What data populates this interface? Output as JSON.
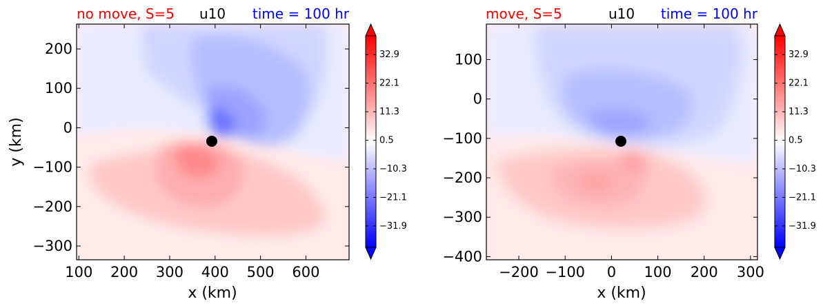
{
  "chart_data": [
    {
      "type": "heatmap",
      "plot_style": "filled-contour",
      "variable": "u10",
      "title_left": "no move, S=5",
      "title_center": "u10",
      "title_right": "time = 100 hr",
      "title_colors": {
        "left": "#ff0000",
        "center": "#000000",
        "right": "#0000ff"
      },
      "xlabel": "x (km)",
      "ylabel": "y (km)",
      "xlim": [
        95,
        695
      ],
      "ylim": [
        -335,
        263
      ],
      "xticks": [
        100,
        200,
        300,
        400,
        500,
        600
      ],
      "yticks": [
        -300,
        -200,
        -100,
        0,
        100,
        200
      ],
      "x_tick_labels": [
        "100",
        "200",
        "300",
        "400",
        "500",
        "600"
      ],
      "y_tick_labels": [
        "−300",
        "−200",
        "−100",
        "0",
        "100",
        "200"
      ],
      "center_marker": {
        "x": 395,
        "y": -37
      },
      "field_features": [
        {
          "kind": "min",
          "x": 405,
          "y": 0,
          "value": -22
        },
        {
          "kind": "max",
          "x": 378,
          "y": -72,
          "value": 26
        }
      ],
      "colorbar": {
        "colormap": "bwr",
        "range": [
          -40,
          40
        ],
        "extend": "both",
        "tick_values": [
          32.9,
          22.1,
          11.3,
          0.5,
          -10.3,
          -21.1,
          -31.9
        ],
        "tick_labels": [
          "32.9",
          "22.1",
          "11.3",
          "0.5",
          "−10.3",
          "−21.1",
          "−31.9"
        ]
      }
    },
    {
      "type": "heatmap",
      "plot_style": "filled-contour",
      "variable": "u10",
      "title_left": "move, S=5",
      "title_center": "u10",
      "title_right": "time = 100 hr",
      "title_colors": {
        "left": "#ff0000",
        "center": "#000000",
        "right": "#0000ff"
      },
      "xlabel": "x (km)",
      "ylabel": "",
      "xlim": [
        -270,
        315
      ],
      "ylim": [
        -408,
        190
      ],
      "xticks": [
        -200,
        -100,
        0,
        100,
        200,
        300
      ],
      "yticks": [
        -400,
        -300,
        -200,
        -100,
        0,
        100
      ],
      "x_tick_labels": [
        "−200",
        "−100",
        "0",
        "100",
        "200",
        "300"
      ],
      "y_tick_labels": [
        "−400",
        "−300",
        "−200",
        "−100",
        "0",
        "100"
      ],
      "center_marker": {
        "x": 22,
        "y": -108
      },
      "field_features": [
        {
          "kind": "min",
          "x": 25,
          "y": -65,
          "value": -14
        },
        {
          "kind": "max",
          "x": 40,
          "y": -158,
          "value": 14
        }
      ],
      "colorbar": {
        "colormap": "bwr",
        "range": [
          -40,
          40
        ],
        "extend": "both",
        "tick_values": [
          32.9,
          22.1,
          11.3,
          0.5,
          -10.3,
          -21.1,
          -31.9
        ],
        "tick_labels": [
          "32.9",
          "22.1",
          "11.3",
          "0.5",
          "−10.3",
          "−21.1",
          "−31.9"
        ]
      }
    }
  ]
}
